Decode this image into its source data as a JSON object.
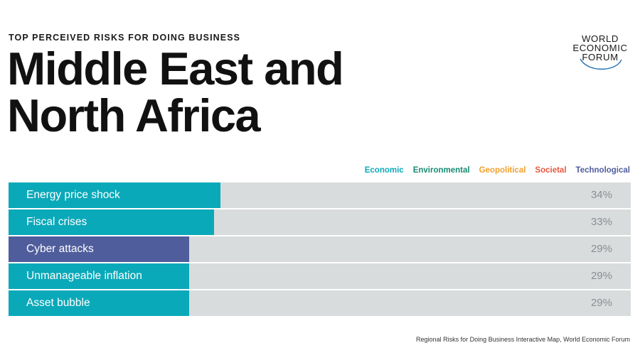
{
  "header": {
    "kicker": "TOP PERCEIVED RISKS FOR DOING BUSINESS",
    "title": "Middle East and North Africa"
  },
  "logo": {
    "line1": "WORLD",
    "line2": "ECONOMIC",
    "line3": "FORUM"
  },
  "legend": [
    {
      "label": "Economic",
      "color": "#0aa9b9"
    },
    {
      "label": "Environmental",
      "color": "#178a72"
    },
    {
      "label": "Geopolitical",
      "color": "#f0a030"
    },
    {
      "label": "Societal",
      "color": "#e8573e"
    },
    {
      "label": "Technological",
      "color": "#4f5d9c"
    }
  ],
  "chart_data": {
    "type": "bar",
    "orientation": "horizontal",
    "categories": [
      "Energy price shock",
      "Fiscal crises",
      "Cyber attacks",
      "Unmanageable inflation",
      "Asset bubble"
    ],
    "values": [
      34,
      33,
      29,
      29,
      29
    ],
    "value_labels": [
      "34%",
      "33%",
      "29%",
      "29%",
      "29%"
    ],
    "category_group": [
      "Economic",
      "Economic",
      "Technological",
      "Economic",
      "Economic"
    ],
    "xlim": [
      0,
      100
    ]
  },
  "footer": {
    "source": "Regional Risks for Doing Business Interactive Map, World Economic Forum"
  }
}
